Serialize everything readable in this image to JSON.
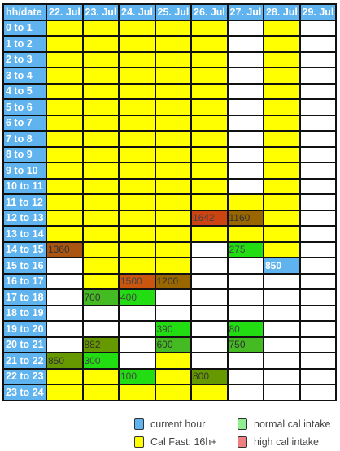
{
  "table": {
    "corner": "hh/date",
    "dates": [
      "22. Jul",
      "23. Jul",
      "24. Jul",
      "25. Jul",
      "26. Jul",
      "27. Jul",
      "28. Jul",
      "29. Jul"
    ],
    "rows": [
      {
        "label": "0 to 1",
        "cells": [
          "F",
          "F",
          "F",
          "F",
          "F",
          "E",
          "F",
          "E"
        ],
        "texts": [
          "",
          "",
          "",
          "",
          "",
          "",
          "",
          ""
        ]
      },
      {
        "label": "1 to 2",
        "cells": [
          "F",
          "F",
          "F",
          "F",
          "F",
          "E",
          "F",
          "E"
        ],
        "texts": [
          "",
          "",
          "",
          "",
          "",
          "",
          "",
          ""
        ]
      },
      {
        "label": "2 to 3",
        "cells": [
          "F",
          "F",
          "F",
          "F",
          "F",
          "E",
          "F",
          "E"
        ],
        "texts": [
          "",
          "",
          "",
          "",
          "",
          "",
          "",
          ""
        ]
      },
      {
        "label": "3 to 4",
        "cells": [
          "F",
          "F",
          "F",
          "F",
          "F",
          "E",
          "F",
          "E"
        ],
        "texts": [
          "",
          "",
          "",
          "",
          "",
          "",
          "",
          ""
        ]
      },
      {
        "label": "4 to 5",
        "cells": [
          "F",
          "F",
          "F",
          "F",
          "F",
          "E",
          "F",
          "E"
        ],
        "texts": [
          "",
          "",
          "",
          "",
          "",
          "",
          "",
          ""
        ]
      },
      {
        "label": "5 to 6",
        "cells": [
          "F",
          "F",
          "F",
          "F",
          "F",
          "E",
          "F",
          "E"
        ],
        "texts": [
          "",
          "",
          "",
          "",
          "",
          "",
          "",
          ""
        ]
      },
      {
        "label": "6 to 7",
        "cells": [
          "F",
          "F",
          "F",
          "F",
          "F",
          "E",
          "F",
          "E"
        ],
        "texts": [
          "",
          "",
          "",
          "",
          "",
          "",
          "",
          ""
        ]
      },
      {
        "label": "7 to 8",
        "cells": [
          "F",
          "F",
          "F",
          "F",
          "F",
          "E",
          "F",
          "E"
        ],
        "texts": [
          "",
          "",
          "",
          "",
          "",
          "",
          "",
          ""
        ]
      },
      {
        "label": "8 to 9",
        "cells": [
          "F",
          "F",
          "F",
          "F",
          "F",
          "E",
          "F",
          "E"
        ],
        "texts": [
          "",
          "",
          "",
          "",
          "",
          "",
          "",
          ""
        ]
      },
      {
        "label": "9 to 10",
        "cells": [
          "F",
          "F",
          "F",
          "F",
          "F",
          "E",
          "F",
          "E"
        ],
        "texts": [
          "",
          "",
          "",
          "",
          "",
          "",
          "",
          ""
        ]
      },
      {
        "label": "10 to 11",
        "cells": [
          "F",
          "F",
          "F",
          "F",
          "F",
          "E",
          "F",
          "E"
        ],
        "texts": [
          "",
          "",
          "",
          "",
          "",
          "",
          "",
          ""
        ]
      },
      {
        "label": "11 to 12",
        "cells": [
          "F",
          "F",
          "F",
          "F",
          "F",
          "F",
          "F",
          "E"
        ],
        "texts": [
          "",
          "",
          "",
          "",
          "",
          "",
          "",
          ""
        ]
      },
      {
        "label": "12 to 13",
        "cells": [
          "F",
          "F",
          "F",
          "F",
          "R",
          "B",
          "F",
          "E"
        ],
        "texts": [
          "",
          "",
          "",
          "",
          "1642",
          "1160",
          "",
          ""
        ]
      },
      {
        "label": "13 to 14",
        "cells": [
          "F",
          "F",
          "F",
          "F",
          "F",
          "F",
          "F",
          "E"
        ],
        "texts": [
          "",
          "",
          "",
          "",
          "",
          "",
          "",
          ""
        ]
      },
      {
        "label": "14 to 15",
        "cells": [
          "B2",
          "F",
          "F",
          "F",
          "E",
          "N",
          "F",
          "E"
        ],
        "texts": [
          "1360",
          "",
          "",
          "",
          "",
          "275",
          "",
          ""
        ]
      },
      {
        "label": "15 to 16",
        "cells": [
          "E",
          "F",
          "F",
          "F",
          "E",
          "E",
          "C",
          "E"
        ],
        "texts": [
          "",
          "",
          "",
          "",
          "",
          "",
          "850",
          ""
        ]
      },
      {
        "label": "16 to 17",
        "cells": [
          "E",
          "F",
          "H",
          "B",
          "E",
          "E",
          "E",
          "E"
        ],
        "texts": [
          "",
          "",
          "1500",
          "1200",
          "",
          "",
          "",
          ""
        ]
      },
      {
        "label": "17 to 18",
        "cells": [
          "E",
          "G2",
          "N",
          "E",
          "E",
          "E",
          "E",
          "E"
        ],
        "texts": [
          "",
          "700",
          "400",
          "",
          "",
          "",
          "",
          ""
        ]
      },
      {
        "label": "18 to 19",
        "cells": [
          "E",
          "E",
          "E",
          "E",
          "E",
          "E",
          "E",
          "E"
        ],
        "texts": [
          "",
          "",
          "",
          "",
          "",
          "",
          "",
          ""
        ]
      },
      {
        "label": "19 to 20",
        "cells": [
          "E",
          "E",
          "E",
          "N",
          "E",
          "N",
          "E",
          "E"
        ],
        "texts": [
          "",
          "",
          "",
          "390",
          "",
          "80",
          "",
          ""
        ]
      },
      {
        "label": "20 to 21",
        "cells": [
          "E",
          "O",
          "E",
          "G2",
          "E",
          "G2",
          "E",
          "E"
        ],
        "texts": [
          "",
          "882",
          "",
          "600",
          "",
          "750",
          "",
          ""
        ]
      },
      {
        "label": "21 to 22",
        "cells": [
          "O",
          "N",
          "E",
          "F",
          "E",
          "E",
          "E",
          "E"
        ],
        "texts": [
          "850",
          "300",
          "",
          "",
          "",
          "",
          "",
          ""
        ]
      },
      {
        "label": "22 to 23",
        "cells": [
          "F",
          "F",
          "N",
          "F",
          "O",
          "E",
          "E",
          "E"
        ],
        "texts": [
          "",
          "",
          "100",
          "",
          "800",
          "",
          "",
          ""
        ]
      },
      {
        "label": "23 to 24",
        "cells": [
          "F",
          "F",
          "F",
          "F",
          "F",
          "E",
          "E",
          "E"
        ],
        "texts": [
          "",
          "",
          "",
          "",
          "",
          "",
          "",
          ""
        ]
      }
    ]
  },
  "legend": {
    "current_hour": "current hour",
    "normal_cal": "normal cal intake",
    "cal_fast": "Cal Fast: 16h+",
    "high_cal": "high cal intake",
    "colors": {
      "current_hour": "#5fb3ee",
      "normal_cal": "#90ee90",
      "cal_fast": "#ffff00",
      "high_cal": "#f08080"
    }
  }
}
